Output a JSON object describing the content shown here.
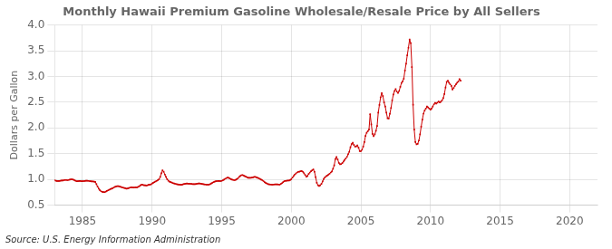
{
  "chart_data": {
    "type": "line",
    "title": "Monthly Hawaii Premium Gasoline Wholesale/Resale Price by All Sellers",
    "ylabel": "Dollars per Gallon",
    "annotation": "Source: U.S. Energy Information Administration",
    "color": "#cc0000",
    "marker": "square",
    "line_style": "solid",
    "grid": true,
    "xlim": [
      1983.0,
      2022.0
    ],
    "xticks": [
      1985,
      1990,
      1995,
      2000,
      2005,
      2010,
      2015,
      2020
    ],
    "ylim": [
      0.5,
      4.0
    ],
    "yticks": [
      0.5,
      {
        "value": 1.0,
        "label": "1.0"
      },
      1.5,
      {
        "value": 2.0,
        "label": "2.0"
      },
      2.5,
      {
        "value": 3.0,
        "label": "3.0"
      },
      3.5,
      {
        "value": 4.0,
        "label": "4.0"
      }
    ],
    "x": [
      1983.0,
      1983.083,
      1983.167,
      1983.25,
      1983.333,
      1983.417,
      1983.5,
      1983.583,
      1983.667,
      1983.75,
      1983.833,
      1983.917,
      1984.0,
      1984.083,
      1984.167,
      1984.25,
      1984.333,
      1984.417,
      1984.5,
      1984.583,
      1984.667,
      1984.75,
      1984.833,
      1984.917,
      1985.0,
      1985.083,
      1985.167,
      1985.25,
      1985.333,
      1985.417,
      1985.5,
      1985.583,
      1985.667,
      1985.75,
      1985.833,
      1985.917,
      1986.0,
      1986.083,
      1986.167,
      1986.25,
      1986.333,
      1986.417,
      1986.5,
      1986.583,
      1986.667,
      1986.75,
      1986.833,
      1986.917,
      1987.0,
      1987.083,
      1987.167,
      1987.25,
      1987.333,
      1987.417,
      1987.5,
      1987.583,
      1987.667,
      1987.75,
      1987.833,
      1987.917,
      1988.0,
      1988.083,
      1988.167,
      1988.25,
      1988.333,
      1988.417,
      1988.5,
      1988.583,
      1988.667,
      1988.75,
      1988.833,
      1988.917,
      1989.0,
      1989.083,
      1989.167,
      1989.25,
      1989.333,
      1989.417,
      1989.5,
      1989.583,
      1989.667,
      1989.75,
      1989.833,
      1989.917,
      1990.0,
      1990.083,
      1990.167,
      1990.25,
      1990.333,
      1990.417,
      1990.5,
      1990.583,
      1990.667,
      1990.75,
      1990.833,
      1990.917,
      1991.0,
      1991.083,
      1991.167,
      1991.25,
      1991.333,
      1991.417,
      1991.5,
      1991.583,
      1991.667,
      1991.75,
      1991.833,
      1991.917,
      1992.0,
      1992.083,
      1992.167,
      1992.25,
      1992.333,
      1992.417,
      1992.5,
      1992.583,
      1992.667,
      1992.75,
      1992.833,
      1992.917,
      1993.0,
      1993.083,
      1993.167,
      1993.25,
      1993.333,
      1993.417,
      1993.5,
      1993.583,
      1993.667,
      1993.75,
      1993.833,
      1993.917,
      1994.0,
      1994.083,
      1994.167,
      1994.25,
      1994.333,
      1994.417,
      1994.5,
      1994.583,
      1994.667,
      1994.75,
      1994.833,
      1994.917,
      1995.0,
      1995.083,
      1995.167,
      1995.25,
      1995.333,
      1995.417,
      1995.5,
      1995.583,
      1995.667,
      1995.75,
      1995.833,
      1995.917,
      1996.0,
      1996.083,
      1996.167,
      1996.25,
      1996.333,
      1996.417,
      1996.5,
      1996.583,
      1996.667,
      1996.75,
      1996.833,
      1996.917,
      1997.0,
      1997.083,
      1997.167,
      1997.25,
      1997.333,
      1997.417,
      1997.5,
      1997.583,
      1997.667,
      1997.75,
      1997.833,
      1997.917,
      1998.0,
      1998.083,
      1998.167,
      1998.25,
      1998.333,
      1998.417,
      1998.5,
      1998.583,
      1998.667,
      1998.75,
      1998.833,
      1998.917,
      1999.0,
      1999.083,
      1999.167,
      1999.25,
      1999.333,
      1999.417,
      1999.5,
      1999.583,
      1999.667,
      1999.75,
      1999.833,
      1999.917,
      2000.0,
      2000.083,
      2000.167,
      2000.25,
      2000.333,
      2000.417,
      2000.5,
      2000.583,
      2000.667,
      2000.75,
      2000.833,
      2000.917,
      2001.0,
      2001.083,
      2001.167,
      2001.25,
      2001.333,
      2001.417,
      2001.5,
      2001.583,
      2001.667,
      2001.75,
      2001.833,
      2001.917,
      2002.0,
      2002.083,
      2002.167,
      2002.25,
      2002.333,
      2002.417,
      2002.5,
      2002.583,
      2002.667,
      2002.75,
      2002.833,
      2002.917,
      2003.0,
      2003.083,
      2003.167,
      2003.25,
      2003.333,
      2003.417,
      2003.5,
      2003.583,
      2003.667,
      2003.75,
      2003.833,
      2003.917,
      2004.0,
      2004.083,
      2004.167,
      2004.25,
      2004.333,
      2004.417,
      2004.5,
      2004.583,
      2004.667,
      2004.75,
      2004.833,
      2004.917,
      2005.0,
      2005.083,
      2005.167,
      2005.25,
      2005.333,
      2005.417,
      2005.5,
      2005.583,
      2005.667,
      2005.75,
      2005.833,
      2005.917,
      2006.0,
      2006.083,
      2006.167,
      2006.25,
      2006.333,
      2006.417,
      2006.5,
      2006.583,
      2006.667,
      2006.75,
      2006.833,
      2006.917,
      2007.0,
      2007.083,
      2007.167,
      2007.25,
      2007.333,
      2007.417,
      2007.5,
      2007.583,
      2007.667,
      2007.75,
      2007.833,
      2007.917,
      2008.0,
      2008.083,
      2008.167,
      2008.25,
      2008.333,
      2008.417,
      2008.5,
      2008.583,
      2008.667,
      2008.75,
      2008.833,
      2008.917,
      2009.0,
      2009.083,
      2009.167,
      2009.25,
      2009.333,
      2009.417,
      2009.5,
      2009.583,
      2009.667,
      2009.75,
      2009.833,
      2009.917,
      2010.0,
      2010.083,
      2010.167,
      2010.25,
      2010.333,
      2010.417,
      2010.5,
      2010.583,
      2010.667,
      2010.75,
      2010.833,
      2010.917,
      2011.0,
      2011.083,
      2011.167,
      2011.25,
      2011.333,
      2011.417,
      2011.5,
      2011.583,
      2011.667,
      2011.75,
      2011.833,
      2011.917,
      2012.0,
      2012.083,
      2012.167
    ],
    "values": [
      0.985,
      0.975,
      0.97,
      0.97,
      0.97,
      0.975,
      0.98,
      0.98,
      0.985,
      0.99,
      0.99,
      0.985,
      0.99,
      0.995,
      1.0,
      1.0,
      0.995,
      0.985,
      0.975,
      0.965,
      0.965,
      0.97,
      0.97,
      0.965,
      0.965,
      0.968,
      0.97,
      0.975,
      0.975,
      0.972,
      0.968,
      0.965,
      0.962,
      0.96,
      0.958,
      0.952,
      0.91,
      0.86,
      0.82,
      0.79,
      0.77,
      0.76,
      0.755,
      0.752,
      0.762,
      0.775,
      0.788,
      0.8,
      0.812,
      0.822,
      0.83,
      0.845,
      0.855,
      0.865,
      0.87,
      0.868,
      0.862,
      0.855,
      0.848,
      0.84,
      0.835,
      0.828,
      0.822,
      0.825,
      0.832,
      0.84,
      0.848,
      0.845,
      0.842,
      0.845,
      0.848,
      0.845,
      0.855,
      0.87,
      0.885,
      0.9,
      0.895,
      0.888,
      0.885,
      0.882,
      0.888,
      0.895,
      0.898,
      0.905,
      0.92,
      0.935,
      0.948,
      0.96,
      0.972,
      0.988,
      1.005,
      1.05,
      1.12,
      1.175,
      1.15,
      1.095,
      1.048,
      1.005,
      0.975,
      0.958,
      0.948,
      0.938,
      0.928,
      0.92,
      0.915,
      0.908,
      0.905,
      0.9,
      0.898,
      0.895,
      0.9,
      0.908,
      0.912,
      0.918,
      0.92,
      0.918,
      0.916,
      0.915,
      0.912,
      0.91,
      0.908,
      0.908,
      0.912,
      0.918,
      0.922,
      0.922,
      0.918,
      0.912,
      0.908,
      0.905,
      0.902,
      0.898,
      0.898,
      0.9,
      0.908,
      0.92,
      0.935,
      0.948,
      0.958,
      0.965,
      0.968,
      0.97,
      0.97,
      0.968,
      0.972,
      0.982,
      0.995,
      1.012,
      1.025,
      1.035,
      1.03,
      1.018,
      1.005,
      0.995,
      0.99,
      0.985,
      0.992,
      1.005,
      1.022,
      1.048,
      1.068,
      1.082,
      1.085,
      1.075,
      1.062,
      1.052,
      1.042,
      1.032,
      1.03,
      1.032,
      1.035,
      1.042,
      1.048,
      1.048,
      1.042,
      1.032,
      1.022,
      1.01,
      0.998,
      0.985,
      0.968,
      0.948,
      0.932,
      0.92,
      0.91,
      0.905,
      0.902,
      0.9,
      0.9,
      0.902,
      0.905,
      0.905,
      0.905,
      0.902,
      0.9,
      0.912,
      0.928,
      0.948,
      0.965,
      0.972,
      0.975,
      0.978,
      0.98,
      0.988,
      1.005,
      1.035,
      1.068,
      1.095,
      1.115,
      1.135,
      1.148,
      1.152,
      1.158,
      1.162,
      1.148,
      1.118,
      1.085,
      1.055,
      1.068,
      1.105,
      1.135,
      1.158,
      1.178,
      1.195,
      1.148,
      1.045,
      0.935,
      0.888,
      0.875,
      0.885,
      0.912,
      0.962,
      1.008,
      1.042,
      1.062,
      1.075,
      1.092,
      1.112,
      1.135,
      1.155,
      1.208,
      1.272,
      1.398,
      1.435,
      1.388,
      1.322,
      1.295,
      1.298,
      1.318,
      1.348,
      1.378,
      1.408,
      1.438,
      1.488,
      1.535,
      1.625,
      1.688,
      1.712,
      1.668,
      1.638,
      1.642,
      1.662,
      1.618,
      1.548,
      1.548,
      1.575,
      1.638,
      1.725,
      1.845,
      1.908,
      1.938,
      1.968,
      2.268,
      2.068,
      1.885,
      1.838,
      1.875,
      1.945,
      2.038,
      2.298,
      2.448,
      2.595,
      2.678,
      2.618,
      2.495,
      2.415,
      2.298,
      2.188,
      2.185,
      2.275,
      2.388,
      2.538,
      2.648,
      2.718,
      2.755,
      2.705,
      2.678,
      2.718,
      2.798,
      2.875,
      2.905,
      2.955,
      3.115,
      3.248,
      3.412,
      3.558,
      3.718,
      3.648,
      3.182,
      2.452,
      1.968,
      1.725,
      1.682,
      1.692,
      1.755,
      1.875,
      2.025,
      2.162,
      2.278,
      2.338,
      2.378,
      2.415,
      2.398,
      2.378,
      2.355,
      2.378,
      2.418,
      2.458,
      2.488,
      2.475,
      2.492,
      2.512,
      2.495,
      2.508,
      2.538,
      2.578,
      2.658,
      2.785,
      2.895,
      2.918,
      2.878,
      2.845,
      2.818,
      2.748,
      2.775,
      2.818,
      2.848,
      2.878,
      2.902,
      2.948,
      2.918
    ]
  }
}
